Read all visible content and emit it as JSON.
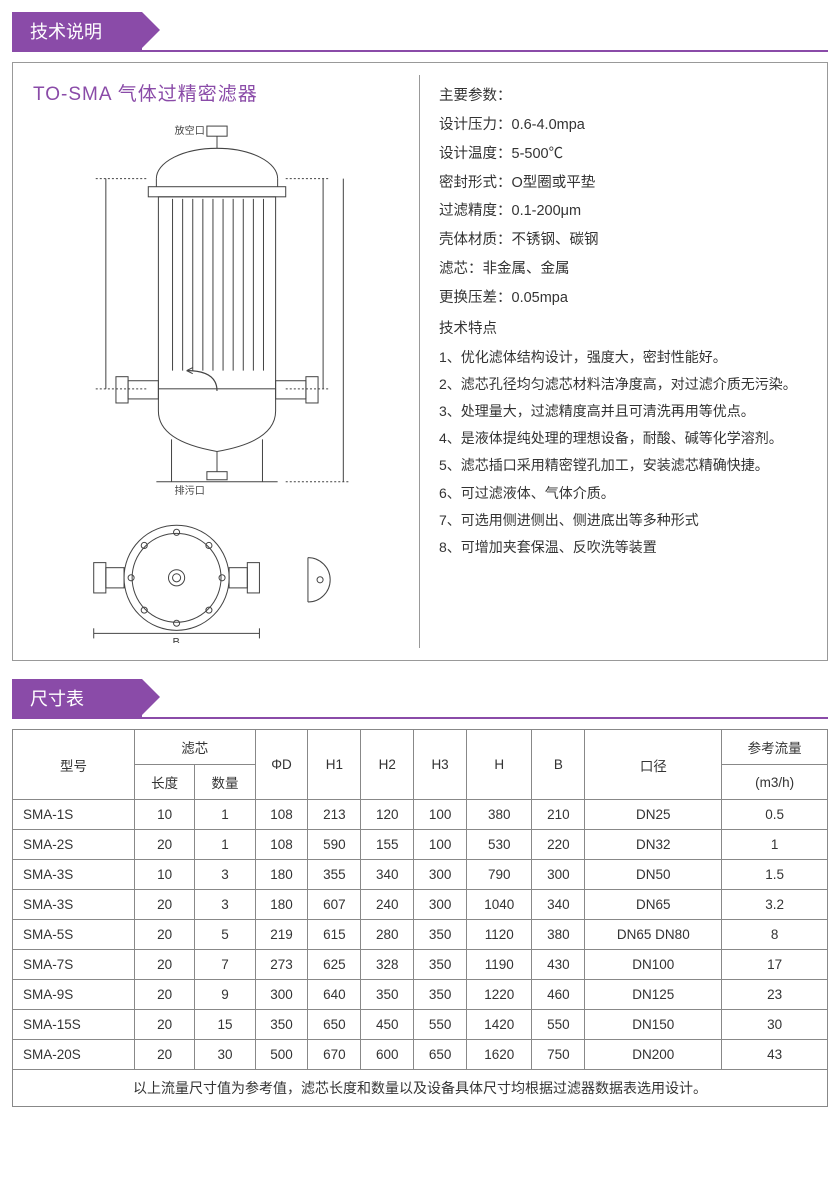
{
  "colors": {
    "accent": "#8a4ba8",
    "border": "#888888",
    "text": "#333333",
    "diagram_stroke": "#444444"
  },
  "section_tech": {
    "title": "技术说明"
  },
  "product": {
    "title": "TO-SMA 气体过精密滤器"
  },
  "diagram_labels": {
    "top_port": "放空口",
    "bottom_port": "排污口"
  },
  "params": {
    "heading": "主要参数：",
    "items": [
      {
        "label": "设计压力：",
        "value": "0.6-4.0mpa"
      },
      {
        "label": "设计温度：",
        "value": "5-500℃"
      },
      {
        "label": "密封形式：",
        "value": "O型圈或平垫"
      },
      {
        "label": "过滤精度：",
        "value": "0.1-200μm"
      },
      {
        "label": "壳体材质：",
        "value": "不锈钢、碳钢"
      },
      {
        "label": "滤芯：",
        "value": "非金属、金属"
      },
      {
        "label": "更换压差：",
        "value": "0.05mpa"
      }
    ]
  },
  "features": {
    "heading": "技术特点",
    "items": [
      "1、优化滤体结构设计，强度大，密封性能好。",
      "2、滤芯孔径均匀滤芯材料洁净度高，对过滤介质无污染。",
      "3、处理量大，过滤精度高并且可清洗再用等优点。",
      "4、是液体提纯处理的理想设备，耐酸、碱等化学溶剂。",
      "5、滤芯插口采用精密镗孔加工，安装滤芯精确快捷。",
      "6、可过滤液体、气体介质。",
      "7、可选用侧进侧出、侧进底出等多种形式",
      "8、可增加夹套保温、反吹洗等装置"
    ]
  },
  "section_size": {
    "title": "尺寸表"
  },
  "table": {
    "headers": {
      "model": "型号",
      "filter": "滤芯",
      "filter_len": "长度",
      "filter_qty": "数量",
      "phiD": "ΦD",
      "H1": "H1",
      "H2": "H2",
      "H3": "H3",
      "H": "H",
      "B": "B",
      "bore": "口径",
      "flow": "参考流量",
      "flow_unit": "(m3/h)"
    },
    "rows": [
      [
        "SMA-1S",
        "10",
        "1",
        "108",
        "213",
        "120",
        "100",
        "380",
        "210",
        "DN25",
        "0.5"
      ],
      [
        "SMA-2S",
        "20",
        "1",
        "108",
        "590",
        "155",
        "100",
        "530",
        "220",
        "DN32",
        "1"
      ],
      [
        "SMA-3S",
        "10",
        "3",
        "180",
        "355",
        "340",
        "300",
        "790",
        "300",
        "DN50",
        "1.5"
      ],
      [
        "SMA-3S",
        "20",
        "3",
        "180",
        "607",
        "240",
        "300",
        "1040",
        "340",
        "DN65",
        "3.2"
      ],
      [
        "SMA-5S",
        "20",
        "5",
        "219",
        "615",
        "280",
        "350",
        "1120",
        "380",
        "DN65 DN80",
        "8"
      ],
      [
        "SMA-7S",
        "20",
        "7",
        "273",
        "625",
        "328",
        "350",
        "1190",
        "430",
        "DN100",
        "17"
      ],
      [
        "SMA-9S",
        "20",
        "9",
        "300",
        "640",
        "350",
        "350",
        "1220",
        "460",
        "DN125",
        "23"
      ],
      [
        "SMA-15S",
        "20",
        "15",
        "350",
        "650",
        "450",
        "550",
        "1420",
        "550",
        "DN150",
        "30"
      ],
      [
        "SMA-20S",
        "20",
        "30",
        "500",
        "670",
        "600",
        "650",
        "1620",
        "750",
        "DN200",
        "43"
      ]
    ],
    "footnote": "以上流量尺寸值为参考值，滤芯长度和数量以及设备具体尺寸均根据过滤器数据表选用设计。"
  }
}
